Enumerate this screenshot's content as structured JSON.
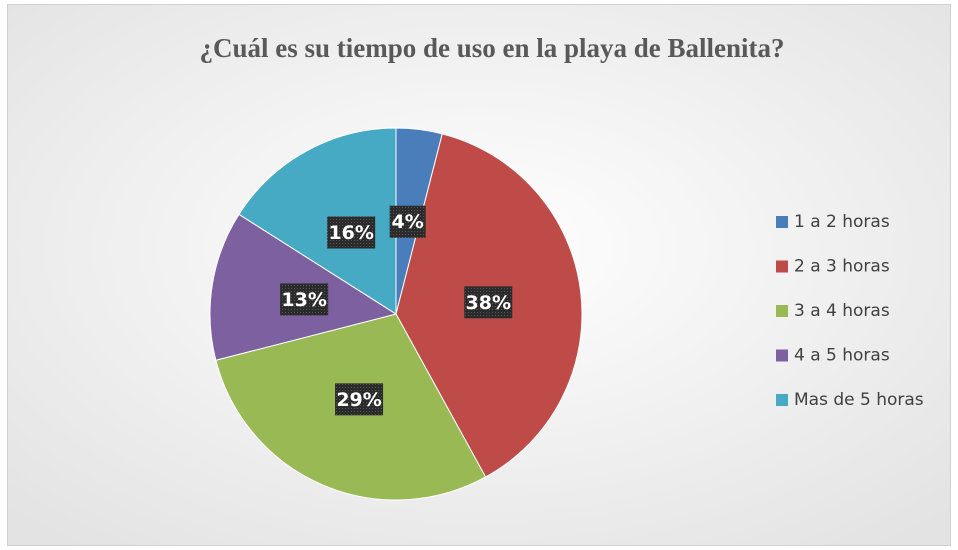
{
  "chart_data": {
    "type": "pie",
    "title": "¿Cuál es su tiempo de uso en la playa de Ballenita?",
    "categories": [
      "1 a 2 horas",
      "2 a 3 horas",
      "3 a 4 horas",
      "4 a 5 horas",
      "Mas de 5 horas"
    ],
    "values": [
      4,
      38,
      29,
      13,
      16
    ],
    "value_labels": [
      "4%",
      "38%",
      "29%",
      "13%",
      "16%"
    ],
    "colors": [
      "#4a7ebb",
      "#be4b48",
      "#98b954",
      "#7d60a0",
      "#46aac5"
    ],
    "legend": "right"
  }
}
